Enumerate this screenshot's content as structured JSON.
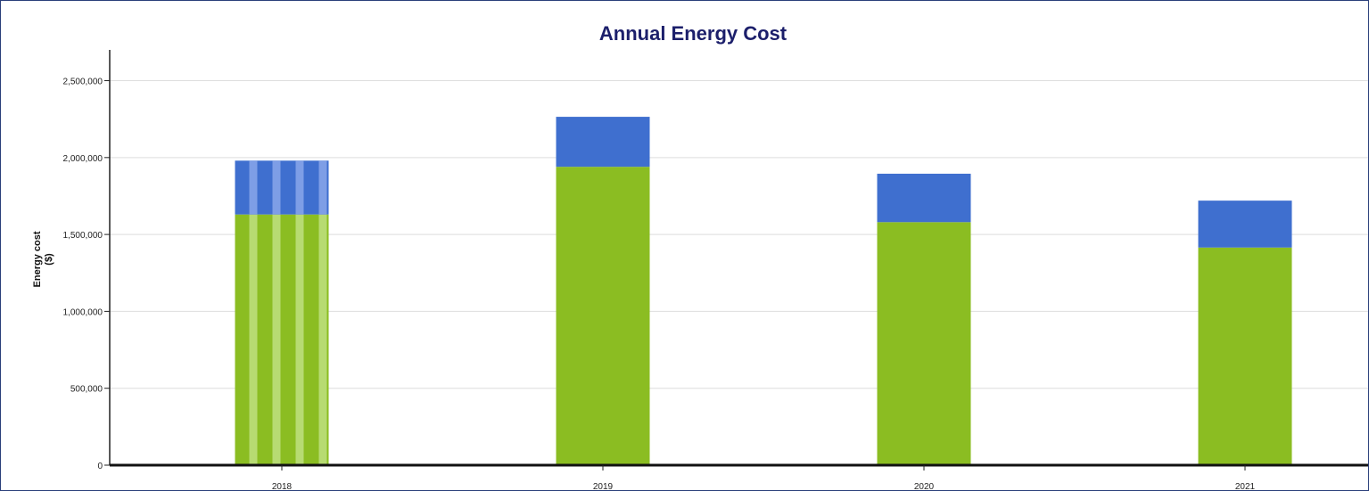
{
  "chart_data": {
    "type": "bar",
    "stacked": true,
    "title": "Annual Energy Cost",
    "ylabel": "Energy cost",
    "ylabel_unit": "($)",
    "xlabel": "",
    "categories": [
      "2018",
      "2019",
      "2020",
      "2021"
    ],
    "series": [
      {
        "values": [
          1630000,
          1940000,
          1580000,
          1415000
        ],
        "color": "#8bbd22"
      },
      {
        "values": [
          350000,
          325000,
          315000,
          305000
        ],
        "color": "#3f6fcf"
      }
    ],
    "ylim": [
      0,
      2700000
    ],
    "yticks": [
      0,
      500000,
      1000000,
      1500000,
      2000000,
      2500000
    ],
    "ytick_labels": [
      "0",
      "500,000",
      "1,000,000",
      "1,500,000",
      "2,000,000",
      "2,500,000"
    ],
    "grid": true,
    "highlighted_category": "2018",
    "highlight_stripe_colors": {
      "green": "#b7db72",
      "blue": "#7e9ee6"
    }
  }
}
